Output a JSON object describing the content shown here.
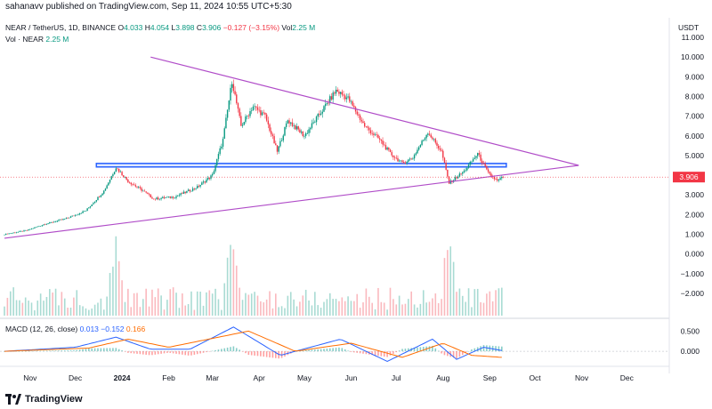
{
  "header": {
    "published": "sahanavv published on TradingView.com, Sep 11, 2024 10:55 UTC+5:30",
    "symbol": "NEAR / TetherUS, 1D, BINANCE",
    "o_label": "O",
    "o": "4.033",
    "h_label": "H",
    "h": "4.054",
    "l_label": "L",
    "l": "3.898",
    "c_label": "C",
    "c": "3.906",
    "change": "−0.127 (−3.15%)",
    "vol_label": "Vol",
    "vol": "2.25 M",
    "vol_line_label": "Vol · NEAR",
    "vol_line_value": "2.25 M",
    "currency": "USDT"
  },
  "macd_legend": {
    "label": "MACD (12, 26, close)",
    "v1": "0.013",
    "v2": "−0.152",
    "v3": "0.166"
  },
  "price_axis": [
    "11.000",
    "10.000",
    "9.000",
    "8.000",
    "7.000",
    "6.000",
    "5.000",
    "4.000",
    "3.000",
    "2.000",
    "1.000",
    "0.000",
    "−1.000",
    "−2.000"
  ],
  "current_price_tag": "3.906",
  "macd_axis": [
    "0.500",
    "0.000"
  ],
  "time_axis": [
    "Nov",
    "Dec",
    "2024",
    "Feb",
    "Mar",
    "Apr",
    "May",
    "Jun",
    "Jul",
    "Aug",
    "Sep",
    "Oct",
    "Nov",
    "Dec"
  ],
  "footer": {
    "brand": "TradingView",
    "logo_icon": "tradingview-logo-icon"
  },
  "colors": {
    "up": "#089981",
    "down": "#f23645",
    "trendline": "#b04cc8",
    "zone": "#2962ff",
    "macd": "#2962ff",
    "signal": "#ff6d00"
  },
  "chart_data": {
    "type": "candlestick",
    "title": "NEAR / TetherUS, 1D, BINANCE",
    "ylabel": "USDT",
    "ylim": [
      -2.5,
      11.5
    ],
    "x_range": [
      "2023-10-15",
      "2024-12-25"
    ],
    "price_path": [
      {
        "date": "2023-10-15",
        "close": 1.0
      },
      {
        "date": "2023-10-30",
        "close": 1.2
      },
      {
        "date": "2023-11-10",
        "close": 1.5
      },
      {
        "date": "2023-11-25",
        "close": 1.8
      },
      {
        "date": "2023-12-08",
        "close": 2.2
      },
      {
        "date": "2023-12-20",
        "close": 3.2
      },
      {
        "date": "2023-12-28",
        "close": 4.4
      },
      {
        "date": "2024-01-05",
        "close": 3.7
      },
      {
        "date": "2024-01-15",
        "close": 3.2
      },
      {
        "date": "2024-01-22",
        "close": 2.8
      },
      {
        "date": "2024-02-05",
        "close": 2.9
      },
      {
        "date": "2024-02-20",
        "close": 3.4
      },
      {
        "date": "2024-03-01",
        "close": 4.0
      },
      {
        "date": "2024-03-08",
        "close": 5.8
      },
      {
        "date": "2024-03-14",
        "close": 8.8
      },
      {
        "date": "2024-03-20",
        "close": 6.5
      },
      {
        "date": "2024-03-28",
        "close": 7.5
      },
      {
        "date": "2024-04-05",
        "close": 7.0
      },
      {
        "date": "2024-04-13",
        "close": 5.2
      },
      {
        "date": "2024-04-20",
        "close": 6.8
      },
      {
        "date": "2024-05-01",
        "close": 6.0
      },
      {
        "date": "2024-05-12",
        "close": 7.2
      },
      {
        "date": "2024-05-22",
        "close": 8.3
      },
      {
        "date": "2024-05-30",
        "close": 7.9
      },
      {
        "date": "2024-06-10",
        "close": 6.5
      },
      {
        "date": "2024-06-20",
        "close": 5.8
      },
      {
        "date": "2024-06-27",
        "close": 5.1
      },
      {
        "date": "2024-07-05",
        "close": 4.6
      },
      {
        "date": "2024-07-12",
        "close": 4.9
      },
      {
        "date": "2024-07-22",
        "close": 6.2
      },
      {
        "date": "2024-07-31",
        "close": 5.2
      },
      {
        "date": "2024-08-05",
        "close": 3.6
      },
      {
        "date": "2024-08-15",
        "close": 4.2
      },
      {
        "date": "2024-08-24",
        "close": 5.1
      },
      {
        "date": "2024-08-31",
        "close": 4.1
      },
      {
        "date": "2024-09-06",
        "close": 3.7
      },
      {
        "date": "2024-09-10",
        "close": 3.906
      }
    ],
    "support_zone": {
      "low": 4.42,
      "high": 4.6,
      "from": "2023-12-15",
      "to": "2024-09-12"
    },
    "upper_trendline": [
      {
        "date": "2024-01-20",
        "value": 10.0
      },
      {
        "date": "2024-10-30",
        "value": 4.5
      }
    ],
    "lower_trendline": [
      {
        "date": "2023-10-15",
        "value": 0.8
      },
      {
        "date": "2024-10-30",
        "value": 4.5
      }
    ],
    "current_price": 3.906,
    "volume_peaks": [
      "2023-12-28",
      "2024-03-14",
      "2024-08-05"
    ],
    "macd": {
      "fast": 12,
      "slow": 26,
      "source": "close",
      "ylim": [
        -0.35,
        0.75
      ],
      "macd_path": [
        {
          "date": "2023-10-15",
          "value": 0.0
        },
        {
          "date": "2023-12-01",
          "value": 0.1
        },
        {
          "date": "2023-12-28",
          "value": 0.35
        },
        {
          "date": "2024-01-20",
          "value": 0.05
        },
        {
          "date": "2024-02-15",
          "value": 0.05
        },
        {
          "date": "2024-03-15",
          "value": 0.6
        },
        {
          "date": "2024-04-15",
          "value": -0.1
        },
        {
          "date": "2024-05-25",
          "value": 0.3
        },
        {
          "date": "2024-06-25",
          "value": -0.25
        },
        {
          "date": "2024-07-25",
          "value": 0.3
        },
        {
          "date": "2024-08-10",
          "value": -0.2
        },
        {
          "date": "2024-08-28",
          "value": 0.1
        },
        {
          "date": "2024-09-10",
          "value": 0.013
        }
      ],
      "signal_path": [
        {
          "date": "2023-10-15",
          "value": 0.0
        },
        {
          "date": "2023-12-10",
          "value": 0.08
        },
        {
          "date": "2024-01-05",
          "value": 0.3
        },
        {
          "date": "2024-02-01",
          "value": 0.1
        },
        {
          "date": "2024-03-25",
          "value": 0.5
        },
        {
          "date": "2024-04-25",
          "value": 0.0
        },
        {
          "date": "2024-06-01",
          "value": 0.2
        },
        {
          "date": "2024-07-05",
          "value": -0.15
        },
        {
          "date": "2024-08-01",
          "value": 0.2
        },
        {
          "date": "2024-08-20",
          "value": -0.1
        },
        {
          "date": "2024-09-10",
          "value": -0.152
        }
      ]
    }
  }
}
